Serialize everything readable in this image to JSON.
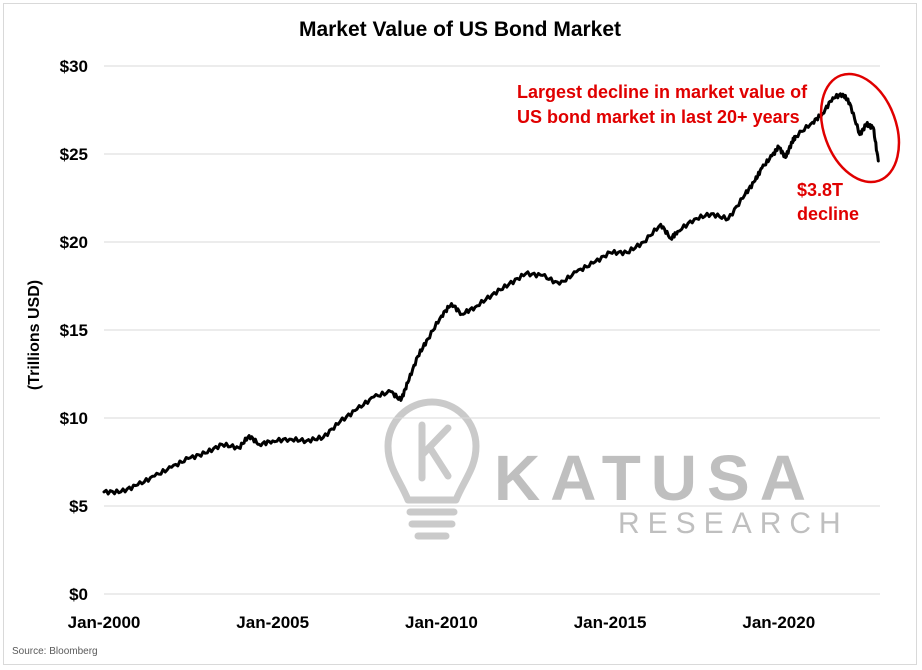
{
  "chart_data": {
    "type": "line",
    "title": "Market Value of US Bond Market",
    "ylabel": "(Trillions USD)",
    "xlabel": "",
    "ylim": [
      0,
      30
    ],
    "y_ticks": [
      "$0",
      "$5",
      "$10",
      "$15",
      "$20",
      "$25",
      "$30"
    ],
    "x_ticks": [
      "Jan-2000",
      "Jan-2005",
      "Jan-2010",
      "Jan-2015",
      "Jan-2020"
    ],
    "x_start": 2000.0,
    "x_end": 2023.0,
    "grid": "horizontal",
    "series": [
      {
        "x": [
          2000.0,
          2000.5,
          2001.0,
          2001.5,
          2002.0,
          2002.5,
          2003.0,
          2003.5,
          2004.0,
          2004.3,
          2004.6,
          2005.0,
          2005.5,
          2006.0,
          2006.5,
          2007.0,
          2007.5,
          2008.0,
          2008.5,
          2008.8,
          2009.0,
          2009.3,
          2009.6,
          2010.0,
          2010.3,
          2010.6,
          2011.0,
          2011.5,
          2012.0,
          2012.5,
          2013.0,
          2013.5,
          2014.0,
          2014.5,
          2015.0,
          2015.5,
          2016.0,
          2016.5,
          2016.8,
          2017.0,
          2017.5,
          2018.0,
          2018.5,
          2019.0,
          2019.3,
          2019.5,
          2019.8,
          2020.0,
          2020.2,
          2020.4,
          2020.5,
          2021.0,
          2021.3,
          2021.6,
          2021.9,
          2022.1,
          2022.4,
          2022.6,
          2022.8,
          2022.95
        ],
        "y": [
          5.8,
          5.8,
          6.2,
          6.7,
          7.2,
          7.7,
          8.0,
          8.5,
          8.3,
          9.0,
          8.5,
          8.7,
          8.8,
          8.7,
          8.9,
          9.8,
          10.5,
          11.2,
          11.5,
          11.0,
          12.0,
          13.5,
          14.5,
          15.8,
          16.5,
          15.9,
          16.3,
          17.0,
          17.6,
          18.2,
          18.1,
          17.6,
          18.3,
          18.8,
          19.4,
          19.4,
          20.0,
          21.0,
          20.2,
          20.6,
          21.3,
          21.6,
          21.3,
          22.7,
          23.5,
          24.2,
          24.9,
          25.4,
          24.8,
          25.7,
          26.0,
          26.8,
          27.3,
          28.2,
          28.4,
          27.9,
          26.1,
          26.7,
          26.5,
          24.6
        ]
      }
    ]
  },
  "annotations": {
    "headline_line1": "Largest decline in market value of",
    "headline_line2": "US bond market in last 20+ years",
    "decline_line1": "$3.8T",
    "decline_line2": "decline",
    "color": "#e00000"
  },
  "source": "Source: Bloomberg",
  "watermark": {
    "brand": "KATUSA",
    "sub": "RESEARCH",
    "icon": "lightbulb-k-icon"
  }
}
